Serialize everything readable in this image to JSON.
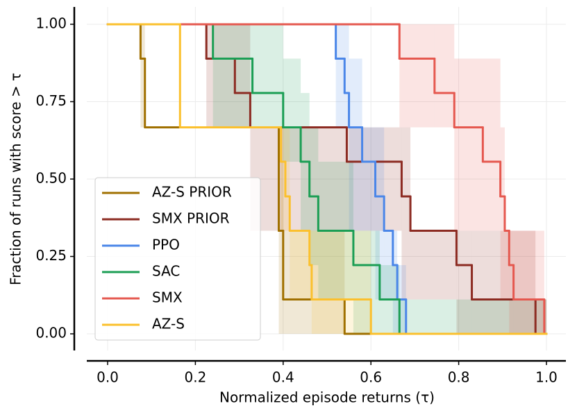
{
  "chart_data": {
    "type": "step",
    "xlabel": "Normalized episode returns (τ)",
    "ylabel": "Fraction of runs with score > τ",
    "xlim": [
      -0.05,
      1.05
    ],
    "ylim": [
      -0.05,
      1.05
    ],
    "xticks": [
      {
        "value": 0,
        "label": "0.0"
      },
      {
        "value": 0.2,
        "label": "0.2"
      },
      {
        "value": 0.4,
        "label": "0.4"
      },
      {
        "value": 0.6,
        "label": "0.6"
      },
      {
        "value": 0.8,
        "label": "0.8"
      },
      {
        "value": 1,
        "label": "1.0"
      }
    ],
    "yticks": [
      {
        "value": 0,
        "label": "0.00"
      },
      {
        "value": 0.25,
        "label": "0.25"
      },
      {
        "value": 0.5,
        "label": "0.50"
      },
      {
        "value": 0.75,
        "label": "0.75"
      },
      {
        "value": 1,
        "label": "1.00"
      }
    ],
    "grid": true,
    "legend": "lower left",
    "series": [
      {
        "name": "AZ-S PRIOR",
        "color": "#a07000",
        "x": [
          0,
          0.075,
          0.085,
          0.39,
          0.4,
          0.54,
          1.0
        ],
        "values": [
          1,
          0.889,
          0.667,
          0.333,
          0.111,
          0,
          0
        ],
        "lower": [
          1,
          0.667,
          0.667,
          0,
          0,
          0,
          0
        ],
        "upper": [
          1,
          1,
          0.667,
          0.667,
          0.333,
          0,
          0
        ]
      },
      {
        "name": "SMX PRIOR",
        "color": "#8c2b22",
        "x": [
          0,
          0.225,
          0.29,
          0.325,
          0.545,
          0.67,
          0.69,
          0.795,
          0.83,
          0.975,
          1.0
        ],
        "values": [
          1,
          0.889,
          0.778,
          0.667,
          0.556,
          0.444,
          0.333,
          0.222,
          0.111,
          0,
          0
        ],
        "lower": [
          1,
          0.667,
          0.667,
          0.333,
          0.333,
          0.111,
          0.111,
          0,
          0,
          0,
          0
        ],
        "upper": [
          1,
          1,
          1,
          0.667,
          0.667,
          0.667,
          0.333,
          0.333,
          0.333,
          0.111,
          0
        ]
      },
      {
        "name": "PPO",
        "color": "#4a86e8",
        "x": [
          0,
          0.52,
          0.54,
          0.55,
          0.58,
          0.61,
          0.63,
          0.65,
          0.66,
          0.68,
          1.0
        ],
        "values": [
          1,
          0.889,
          0.778,
          0.667,
          0.556,
          0.444,
          0.333,
          0.222,
          0.111,
          0,
          0
        ],
        "lower": [
          1,
          0.667,
          0.667,
          0.333,
          0.333,
          0.111,
          0.111,
          0,
          0,
          0,
          0
        ],
        "upper": [
          1,
          1,
          1,
          0.889,
          0.667,
          0.667,
          0.333,
          0.333,
          0.222,
          0,
          0
        ]
      },
      {
        "name": "SAC",
        "color": "#1b9e54",
        "x": [
          0,
          0.24,
          0.33,
          0.4,
          0.44,
          0.46,
          0.48,
          0.56,
          0.62,
          0.665,
          1.0
        ],
        "values": [
          1,
          0.889,
          0.778,
          0.667,
          0.556,
          0.444,
          0.333,
          0.222,
          0.111,
          0,
          0
        ],
        "lower": [
          1,
          0.667,
          0.667,
          0.556,
          0.333,
          0.222,
          0.111,
          0,
          0,
          0,
          0
        ],
        "upper": [
          1,
          1,
          1,
          0.889,
          0.778,
          0.667,
          0.556,
          0.333,
          0.222,
          0.111,
          0
        ]
      },
      {
        "name": "SMX",
        "color": "#e5584f",
        "x": [
          0,
          0.665,
          0.745,
          0.79,
          0.855,
          0.895,
          0.905,
          0.915,
          0.925,
          0.995,
          1.0
        ],
        "values": [
          1,
          0.889,
          0.778,
          0.667,
          0.556,
          0.444,
          0.333,
          0.222,
          0.111,
          0,
          0
        ],
        "lower": [
          1,
          0.667,
          0.667,
          0.333,
          0.333,
          0.111,
          0.111,
          0,
          0,
          0,
          0
        ],
        "upper": [
          1,
          1,
          1,
          0.889,
          0.889,
          0.667,
          0.333,
          0.333,
          0.333,
          0.111,
          0
        ]
      },
      {
        "name": "AZ-S",
        "color": "#fbc02d",
        "x": [
          0,
          0.165,
          0.395,
          0.405,
          0.415,
          0.46,
          0.465,
          0.6,
          1.0
        ],
        "values": [
          1,
          0.667,
          0.556,
          0.444,
          0.333,
          0.222,
          0.111,
          0,
          0
        ],
        "lower": [
          1,
          0.667,
          0.333,
          0.333,
          0.111,
          0.111,
          0,
          0,
          0
        ],
        "upper": [
          1,
          0.667,
          0.667,
          0.667,
          0.333,
          0.333,
          0.333,
          0,
          0
        ]
      }
    ]
  }
}
